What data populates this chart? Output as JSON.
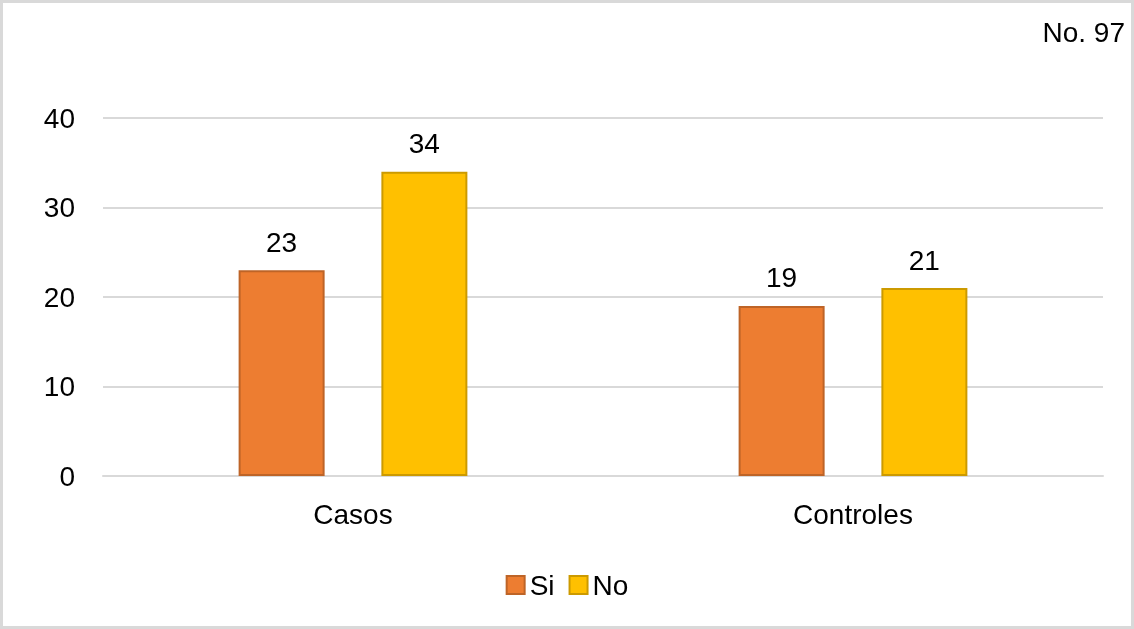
{
  "chart_data": {
    "type": "bar",
    "categories": [
      "Casos",
      "Controles"
    ],
    "series": [
      {
        "name": "Si",
        "color": "#ed7d31",
        "values": [
          23,
          19
        ]
      },
      {
        "name": "No",
        "color": "#ffc000",
        "values": [
          34,
          21
        ]
      }
    ],
    "ylim": [
      0,
      40
    ],
    "yticks": [
      0,
      10,
      20,
      30,
      40
    ],
    "grid": "y",
    "legend": "bottom",
    "data_labels": true,
    "annotations": [
      "No. 97"
    ]
  }
}
